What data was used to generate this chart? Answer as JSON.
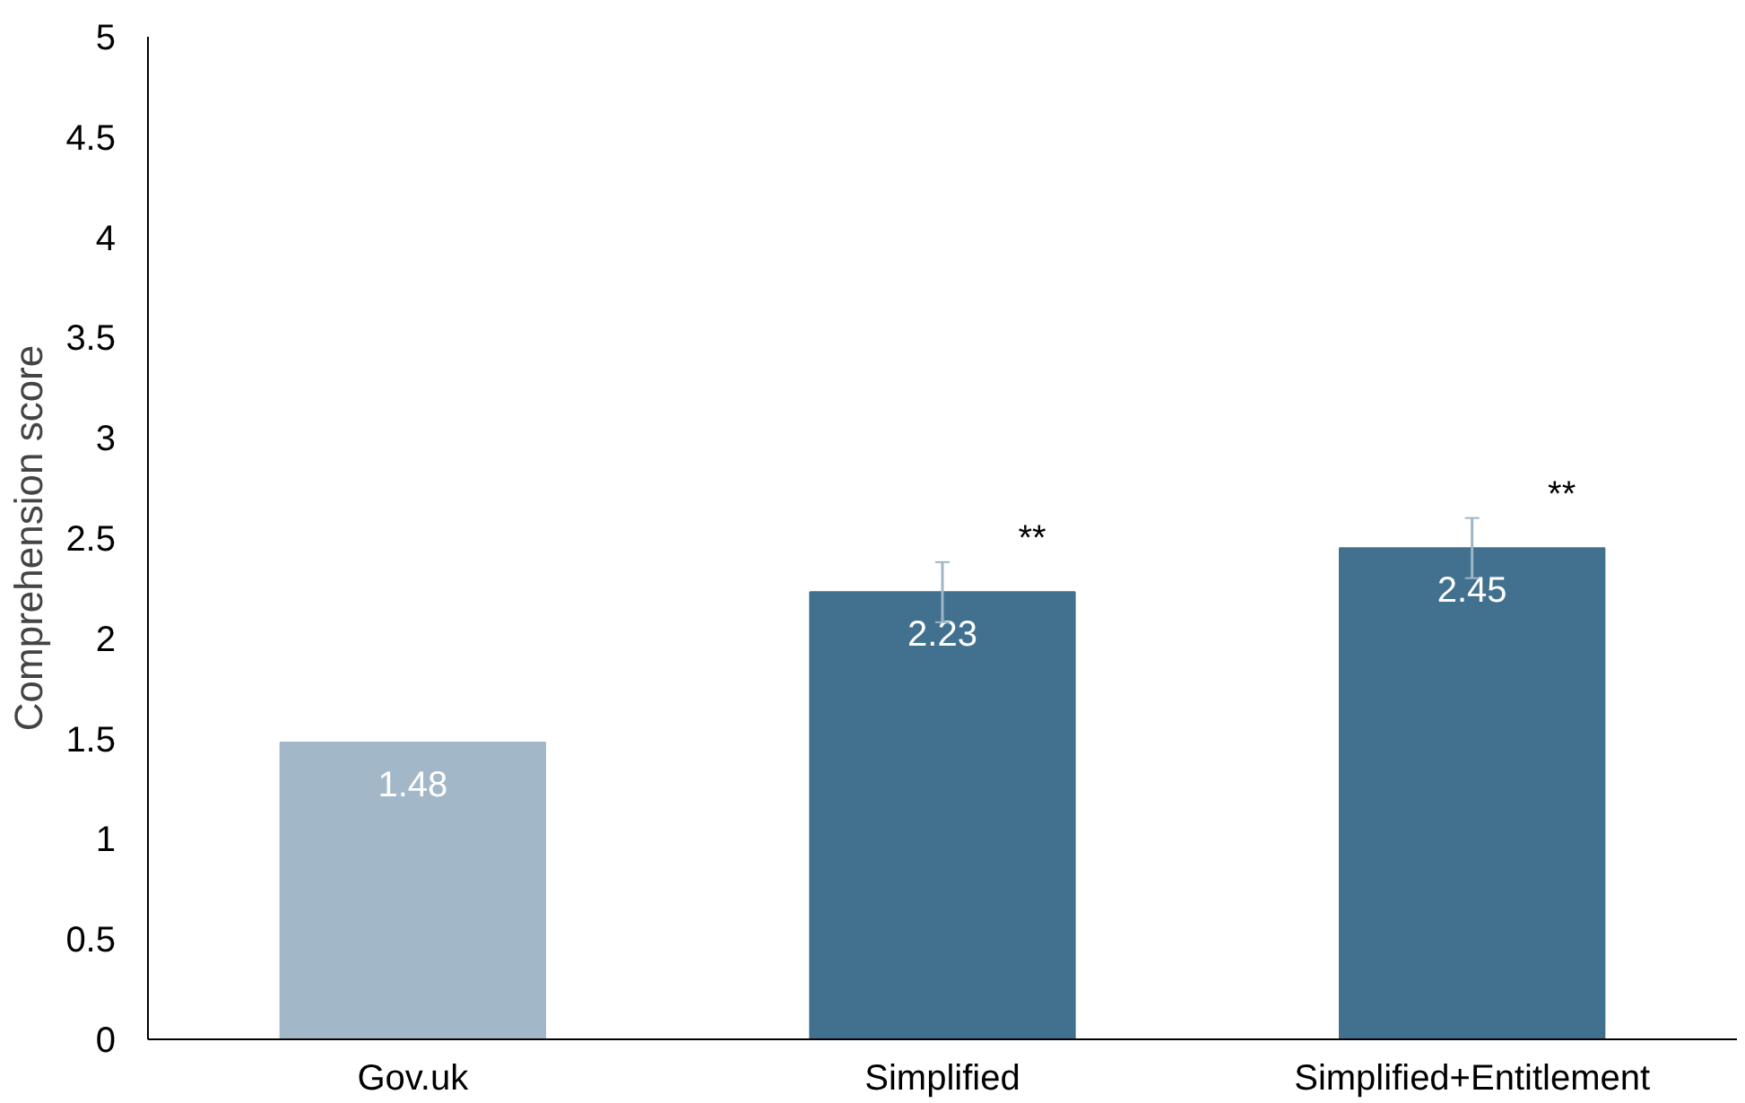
{
  "chart_data": {
    "type": "bar",
    "ylabel": "Comprehension score",
    "categories": [
      "Gov.uk",
      "Simplified",
      "Simplified+Entitlement"
    ],
    "values": [
      1.48,
      2.23,
      2.45
    ],
    "colors": [
      "#a2b8c8",
      "#41718f",
      "#41718f"
    ],
    "errors": [
      null,
      0.15,
      0.15
    ],
    "data_labels": true,
    "ylim": [
      0,
      5
    ],
    "yticks": [
      0,
      0.5,
      1,
      1.5,
      2,
      2.5,
      3,
      3.5,
      4,
      4.5,
      5
    ],
    "grid": false,
    "annotations": [
      "**",
      "**"
    ]
  }
}
